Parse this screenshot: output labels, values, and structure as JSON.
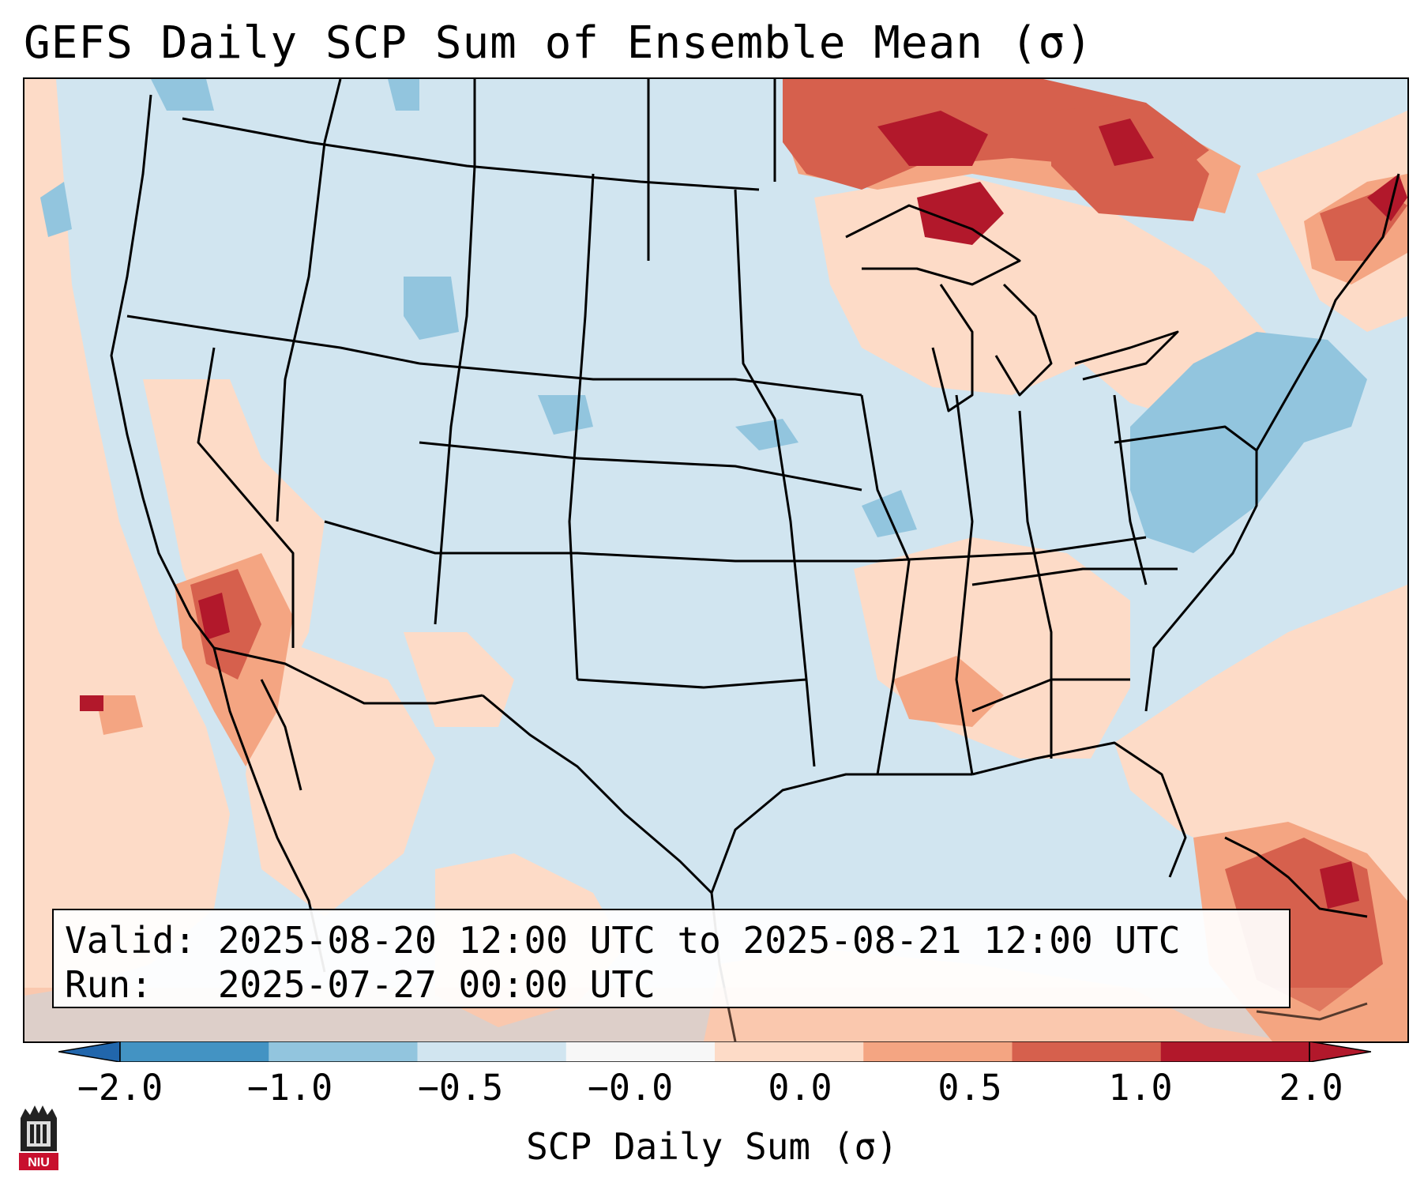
{
  "title": "GEFS Daily SCP Sum of Ensemble Mean (σ)",
  "info": {
    "valid_line": "Valid: 2025-08-20 12:00 UTC to 2025-08-21 12:00 UTC",
    "run_line": "Run:   2025-07-27 00:00 UTC"
  },
  "colorbar": {
    "label": "SCP Daily Sum (σ)",
    "ticks": [
      "−2.0",
      "−1.0",
      "−0.5",
      "−0.0",
      "0.0",
      "0.5",
      "1.0",
      "2.0"
    ],
    "colors": [
      "#4393c3",
      "#92c5de",
      "#d1e5f0",
      "#f7f7f7",
      "#fddbc7",
      "#f4a582",
      "#d6604d",
      "#b2182b"
    ],
    "extend_low_color": "#2166ac",
    "extend_high_color": "#b2182b"
  },
  "logo": {
    "text": "NIU",
    "color": "#c8102e"
  },
  "map": {
    "background_color": "#d1e5f0",
    "regions": [
      {
        "name": "canada-great-lakes",
        "level": "1.0 to 2.0"
      },
      {
        "name": "southern-california",
        "level": "1.0 to 2.0"
      },
      {
        "name": "caribbean",
        "level": "1.0 to 2.0"
      },
      {
        "name": "northeast",
        "level": "0.5 to 1.0"
      },
      {
        "name": "southeast-gulf",
        "level": "0.0 to 0.5"
      },
      {
        "name": "great-basin",
        "level": "0.0 to 0.5"
      },
      {
        "name": "atlantic-coast",
        "level": "-1.0 to -0.5"
      },
      {
        "name": "wyoming-montana",
        "level": "-1.0 to -0.5"
      }
    ]
  }
}
